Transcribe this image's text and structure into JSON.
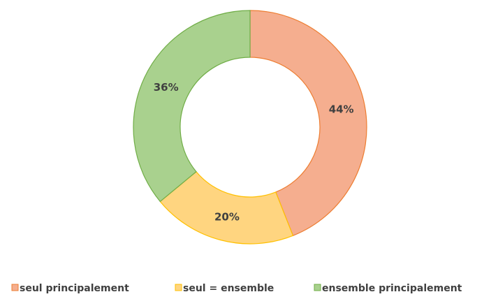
{
  "chart_data": {
    "type": "donut",
    "categories": [
      "seul principalement",
      "seul = ensemble",
      "ensemble principalement"
    ],
    "values": [
      44,
      20,
      36
    ],
    "value_labels": [
      "44%",
      "20%",
      "36%"
    ],
    "colors": [
      "#f5ae8f",
      "#ffd580",
      "#a9d18e"
    ],
    "stroke_colors": [
      "#ed7d31",
      "#ffc000",
      "#70ad47"
    ],
    "legend": "bottom"
  }
}
